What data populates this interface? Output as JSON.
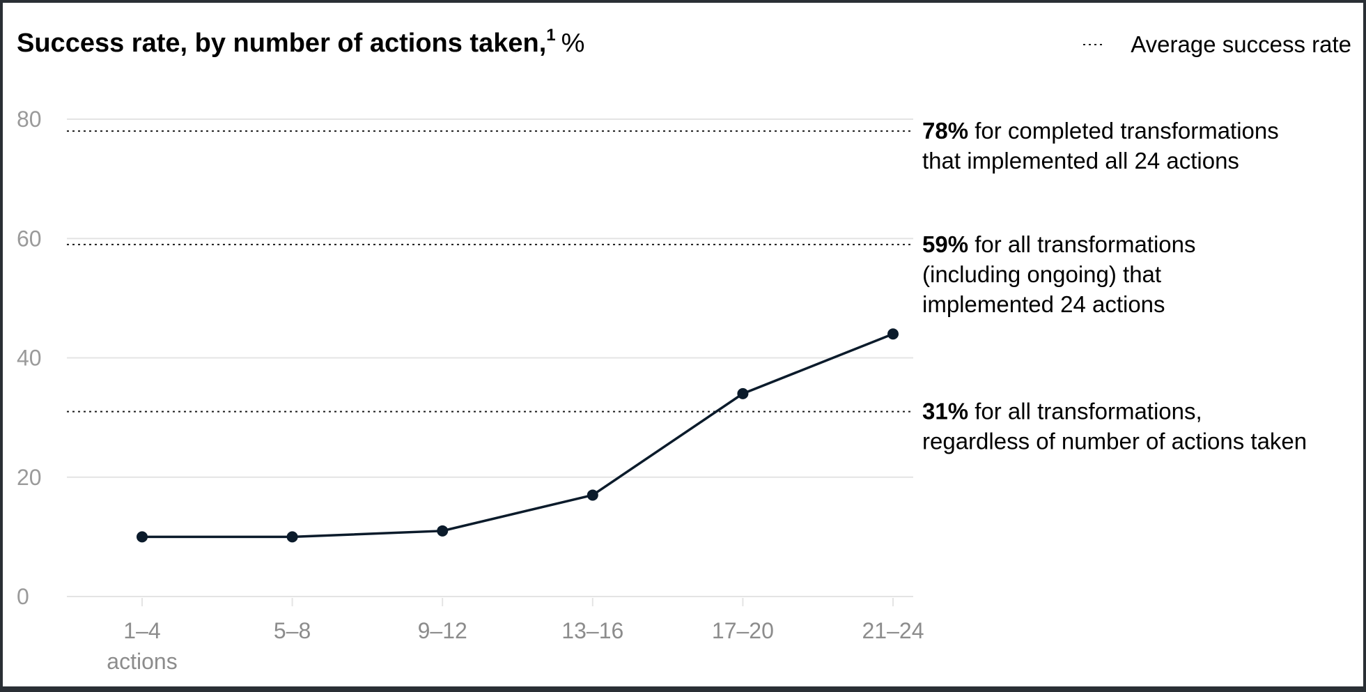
{
  "chart_data": {
    "type": "line",
    "title": "Success rate, by number of actions taken,",
    "title_footnote": "1",
    "title_unit": "%",
    "legend": {
      "label": "Average success rate",
      "position": "top-right",
      "line_style": "dotted"
    },
    "categories": [
      "1–4",
      "5–8",
      "9–12",
      "13–16",
      "17–20",
      "21–24"
    ],
    "category_sublabel": "actions",
    "values": [
      10,
      10,
      11,
      17,
      34,
      44
    ],
    "ylim": [
      0,
      80
    ],
    "yticks": [
      0,
      20,
      40,
      60,
      80
    ],
    "grid": true,
    "xlabel": "",
    "ylabel": "",
    "reference_lines": [
      {
        "value": 78,
        "label_bold": "78%",
        "label_lines": [
          " for completed transformations",
          "that implemented all 24 actions"
        ]
      },
      {
        "value": 59,
        "label_bold": "59%",
        "label_lines": [
          " for all transformations",
          "(including ongoing) that",
          "implemented 24 actions"
        ]
      },
      {
        "value": 31,
        "label_bold": "31%",
        "label_lines": [
          " for all transformations,",
          "regardless of number of actions taken"
        ]
      }
    ]
  },
  "colors": {
    "background": "#ffffff",
    "frame": "#2a2f35",
    "line": "#0b1b2b",
    "gridline": "#e4e4e4",
    "reference_line": "#1a1a1a",
    "tick_label": "#9a9a9a",
    "text": "#000000"
  }
}
